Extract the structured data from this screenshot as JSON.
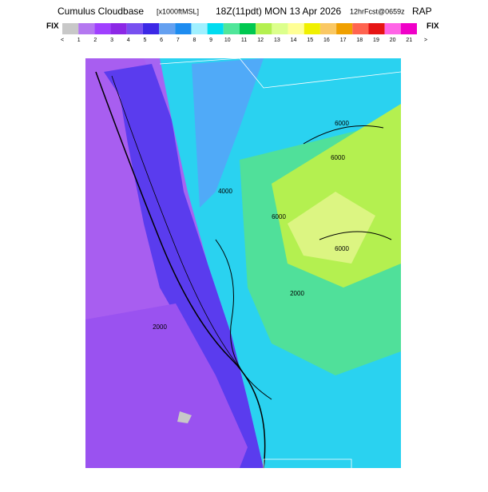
{
  "header": {
    "title": [
      "Cumulus Cloudbase",
      "[x1000ftMSL]",
      "18Z(11pdt) MON 13 Apr 2026",
      "12hrFcst@0659z",
      "RAP"
    ]
  },
  "colorbar": {
    "left_label": "FIX",
    "right_label": "FIX",
    "labels": [
      "<",
      "1",
      "2",
      "3",
      "4",
      "5",
      "6",
      "7",
      "8",
      "9",
      "10",
      "11",
      "12",
      "13",
      "14",
      "15",
      "16",
      "17",
      "18",
      "19",
      "20",
      "21",
      ">"
    ],
    "colors": [
      "#c8c8c8",
      "#b478f0",
      "#a040ff",
      "#8c28e6",
      "#7850f0",
      "#3c28e6",
      "#64a0f0",
      "#1e8cf0",
      "#a0f0ff",
      "#00dcf0",
      "#50e69a",
      "#00c850",
      "#b4f050",
      "#dcff8c",
      "#ffff96",
      "#f0f000",
      "#fac864",
      "#f0a000",
      "#ff6450",
      "#e61414",
      "#ff64e6",
      "#f000c8"
    ]
  },
  "contour_labels": [
    "6000",
    "6000",
    "6000",
    "6000",
    "2000",
    "2000",
    "4000"
  ]
}
